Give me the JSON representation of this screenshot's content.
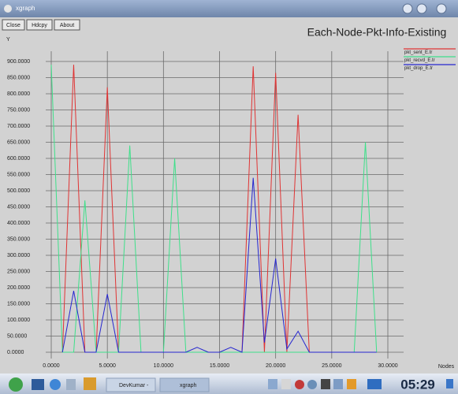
{
  "window": {
    "title": "xgraph",
    "buttons": [
      "Close",
      "Hdcpy",
      "About"
    ]
  },
  "taskbar": {
    "tasks": [
      "DevKumar -",
      "xgraph"
    ],
    "clock": "05:29"
  },
  "chart_data": {
    "type": "line",
    "title": "Each-Node-Pkt-Info-Existing",
    "y_label": "Y",
    "x_label": "Nodes",
    "x": [
      0,
      1,
      2,
      3,
      4,
      5,
      6,
      7,
      8,
      9,
      10,
      11,
      12,
      13,
      14,
      15,
      16,
      17,
      18,
      19,
      20,
      21,
      22,
      23,
      24,
      25,
      26,
      27,
      28,
      29
    ],
    "series": [
      {
        "name": "pkt_sent_E.tr",
        "color": "#e03434",
        "values": [
          null,
          0,
          890,
          0,
          0,
          820,
          0,
          0,
          0,
          0,
          0,
          0,
          0,
          0,
          0,
          0,
          0,
          0,
          885,
          0,
          865,
          0,
          735,
          0,
          0,
          0,
          0,
          0,
          0,
          0
        ]
      },
      {
        "name": "pkt_recvd_E.tr",
        "color": "#3ee08a",
        "values": [
          890,
          0,
          0,
          470,
          0,
          0,
          0,
          640,
          0,
          0,
          0,
          600,
          0,
          0,
          0,
          0,
          0,
          0,
          0,
          0,
          0,
          0,
          0,
          0,
          0,
          0,
          0,
          0,
          650,
          0
        ]
      },
      {
        "name": "pkt_drop_E.tr",
        "color": "#2626d0",
        "values": [
          null,
          0,
          190,
          0,
          0,
          180,
          0,
          0,
          0,
          0,
          0,
          0,
          0,
          15,
          0,
          0,
          15,
          0,
          540,
          30,
          290,
          10,
          65,
          0,
          0,
          0,
          0,
          0,
          0,
          0
        ]
      }
    ],
    "xlim": [
      0,
      30
    ],
    "xticks": [
      {
        "value": 0,
        "label": "0.0000"
      },
      {
        "value": 5,
        "label": "5.0000"
      },
      {
        "value": 10,
        "label": "10.0000"
      },
      {
        "value": 15,
        "label": "15.0000"
      },
      {
        "value": 20,
        "label": "20.0000"
      },
      {
        "value": 25,
        "label": "25.0000"
      },
      {
        "value": 30,
        "label": "30.0000"
      }
    ],
    "ylim": [
      0,
      900
    ],
    "yticks": [
      {
        "value": 0,
        "label": "0.0000"
      },
      {
        "value": 50,
        "label": "50.0000"
      },
      {
        "value": 100,
        "label": "100.0000"
      },
      {
        "value": 150,
        "label": "150.0000"
      },
      {
        "value": 200,
        "label": "200.0000"
      },
      {
        "value": 250,
        "label": "250.0000"
      },
      {
        "value": 300,
        "label": "300.0000"
      },
      {
        "value": 350,
        "label": "350.0000"
      },
      {
        "value": 400,
        "label": "400.0000"
      },
      {
        "value": 450,
        "label": "450.0000"
      },
      {
        "value": 500,
        "label": "500.0000"
      },
      {
        "value": 550,
        "label": "550.0000"
      },
      {
        "value": 600,
        "label": "600.0000"
      },
      {
        "value": 650,
        "label": "650.0000"
      },
      {
        "value": 700,
        "label": "700.0000"
      },
      {
        "value": 750,
        "label": "750.0000"
      },
      {
        "value": 800,
        "label": "800.0000"
      },
      {
        "value": 850,
        "label": "850.0000"
      },
      {
        "value": 900,
        "label": "900.0000"
      }
    ],
    "grid": true,
    "legend": "top-right"
  }
}
